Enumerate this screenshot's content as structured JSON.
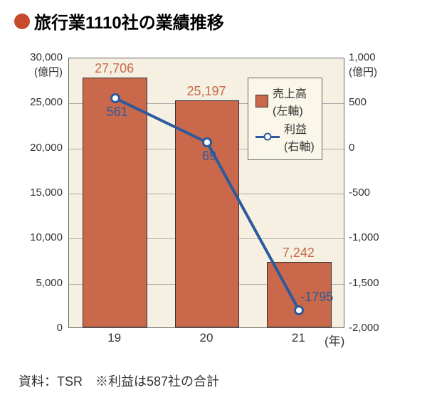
{
  "title": "旅行業1110社の業績推移",
  "bullet_color": "#c64a2e",
  "chart": {
    "background_color": "#f5f0e2",
    "grid_color": "#aaaaaa",
    "border_color": "#666666",
    "categories": [
      "19",
      "20",
      "21"
    ],
    "x_unit": "(年)",
    "bars": {
      "values": [
        27706,
        25197,
        7242
      ],
      "color": "#c9684a",
      "label_color": "#c9684a",
      "width_frac": 0.7,
      "axis_min": 0,
      "axis_max": 30000,
      "tick_step": 5000,
      "unit_label": "(億円)"
    },
    "line": {
      "values": [
        561,
        69,
        -1795
      ],
      "color": "#2b5a9e",
      "label_color": "#2b5a9e",
      "marker_fill": "#ffffff",
      "axis_min": -2000,
      "axis_max": 1000,
      "tick_step": 500,
      "unit_label": "(億円)",
      "line_width": 4
    },
    "legend": {
      "bar_label": "売上高",
      "bar_note": "(左軸)",
      "line_label": "利益",
      "line_note": "(右軸)"
    },
    "font_size_ticks": 15,
    "font_size_labels": 18
  },
  "footer": "資料：TSR　※利益は587社の合計"
}
